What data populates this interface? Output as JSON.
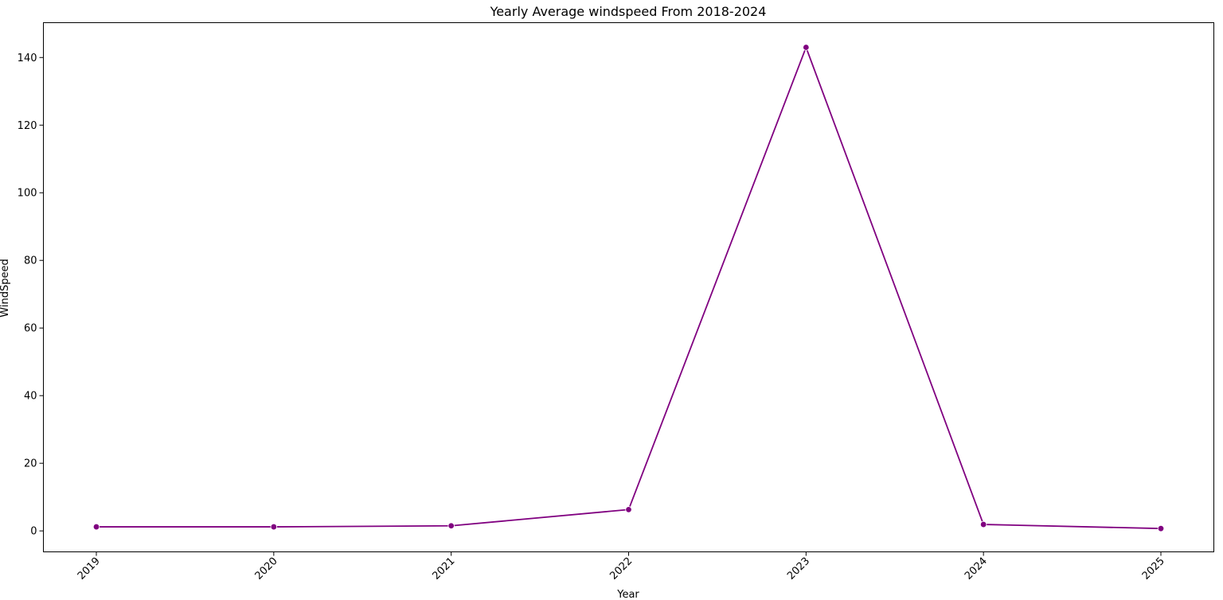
{
  "chart_data": {
    "type": "line",
    "title": "Yearly Average windspeed From 2018-2024",
    "xlabel": "Year",
    "ylabel": "WindSpeed",
    "x": [
      "2019",
      "2020",
      "2021",
      "2022",
      "2023",
      "2024",
      "2025"
    ],
    "series": [
      {
        "values": [
          1.2,
          1.2,
          1.5,
          6.3,
          143.0,
          1.9,
          0.7
        ],
        "color": "#800080",
        "marker": "circle"
      }
    ],
    "ylim": [
      -6.2,
      150.3
    ],
    "yticks": [
      0,
      20,
      40,
      60,
      80,
      100,
      120,
      140
    ],
    "xtick_rotation_deg": 45,
    "grid": false,
    "legend": false
  }
}
